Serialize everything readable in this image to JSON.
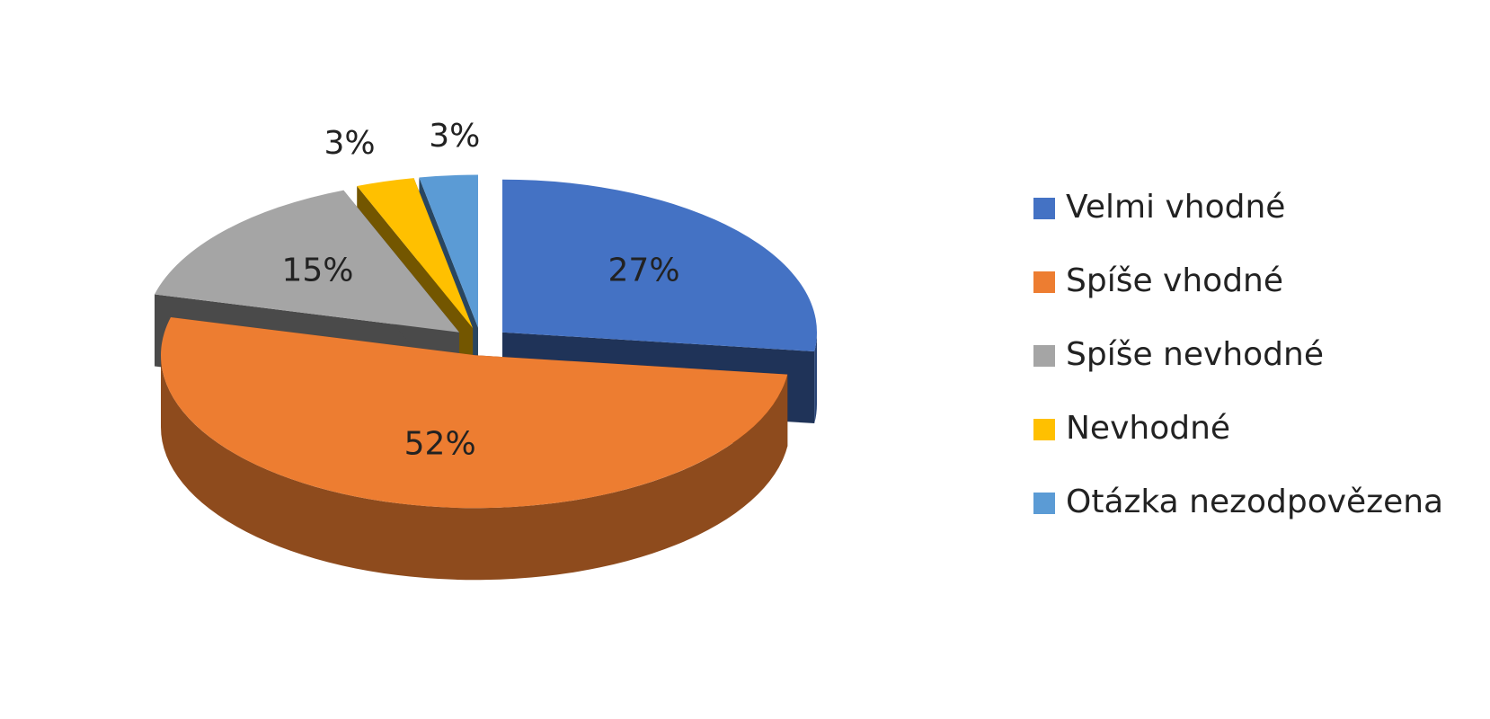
{
  "chart_data": {
    "type": "pie",
    "categories": [
      "Velmi vhodné",
      "Spíše vhodné",
      "Spíše nevhodné",
      "Nevhodné",
      "Otázka nezodpovězena"
    ],
    "values": [
      27,
      52,
      15,
      3,
      3
    ],
    "value_labels": [
      "27%",
      "52%",
      "15%",
      "3%",
      "3%"
    ],
    "colors": [
      "#4472C4",
      "#ED7D31",
      "#A5A5A5",
      "#FFC000",
      "#5B9BD5"
    ],
    "legend": "right"
  }
}
